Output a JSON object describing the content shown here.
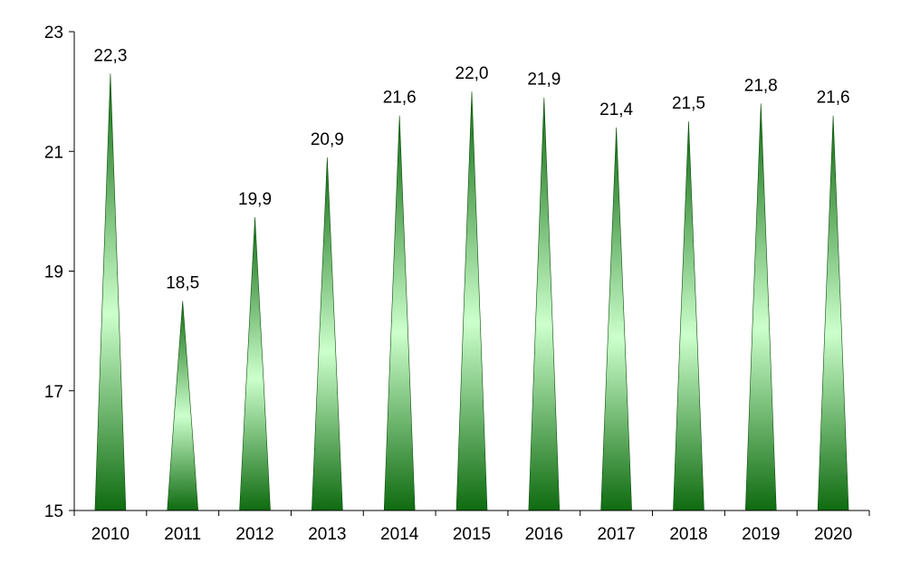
{
  "chart_data": {
    "type": "bar",
    "bar_shape": "cone",
    "categories": [
      "2010",
      "2011",
      "2012",
      "2013",
      "2014",
      "2015",
      "2016",
      "2017",
      "2018",
      "2019",
      "2020"
    ],
    "values": [
      22.3,
      18.5,
      19.9,
      20.9,
      21.6,
      22.0,
      21.9,
      21.4,
      21.5,
      21.8,
      21.6
    ],
    "data_labels": [
      "22,3",
      "18,5",
      "19,9",
      "20,9",
      "21,6",
      "22,0",
      "21,9",
      "21,4",
      "21,5",
      "21,8",
      "21,6"
    ],
    "ylim": [
      15,
      23
    ],
    "yticks": [
      15,
      17,
      19,
      21,
      23
    ],
    "ytick_labels": [
      "15",
      "17",
      "19",
      "21",
      "23"
    ],
    "grid": false,
    "legend": "none",
    "colors": {
      "bar_dark": "#0f6b10",
      "bar_light": "#ccffcc",
      "axis": "#000000"
    }
  }
}
